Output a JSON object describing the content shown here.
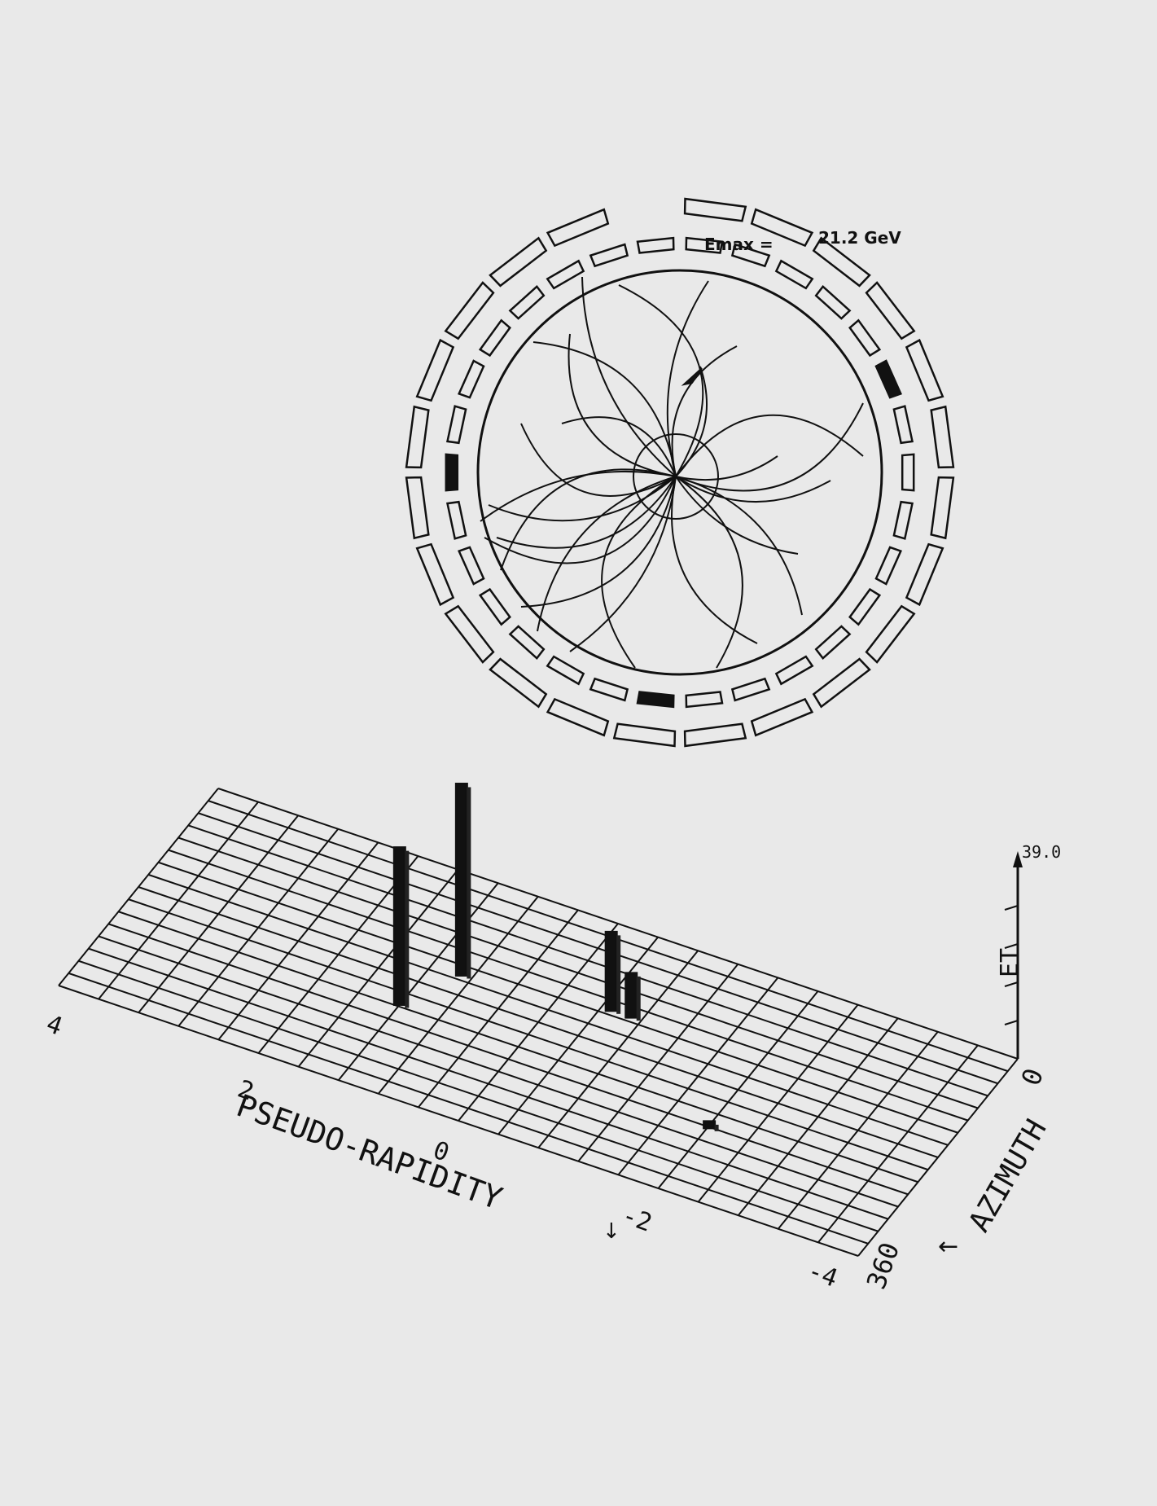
{
  "detector_view": {
    "emax_label": "Emax =",
    "emax_value": "21.2 GeV"
  },
  "lego_plot": {
    "x_axis_label": "PSEUDO-RAPIDITY",
    "x_ticks": [
      "4",
      "2",
      "0",
      "-2",
      "-4"
    ],
    "y_axis_label": "AZIMUTH",
    "y_ticks": [
      "0",
      "360"
    ],
    "z_axis_label": "ET",
    "z_max_label": "39.0",
    "towers": [
      {
        "eta": 0.9,
        "phi": 150,
        "et": 39.0
      },
      {
        "eta": 1.2,
        "phi": 222,
        "et": 32.0
      },
      {
        "eta": -0.5,
        "phi": 128,
        "et": 16.0
      },
      {
        "eta": -0.7,
        "phi": 128,
        "et": 9.0
      },
      {
        "eta": -2.0,
        "phi": 245,
        "et": 0.8
      }
    ]
  }
}
